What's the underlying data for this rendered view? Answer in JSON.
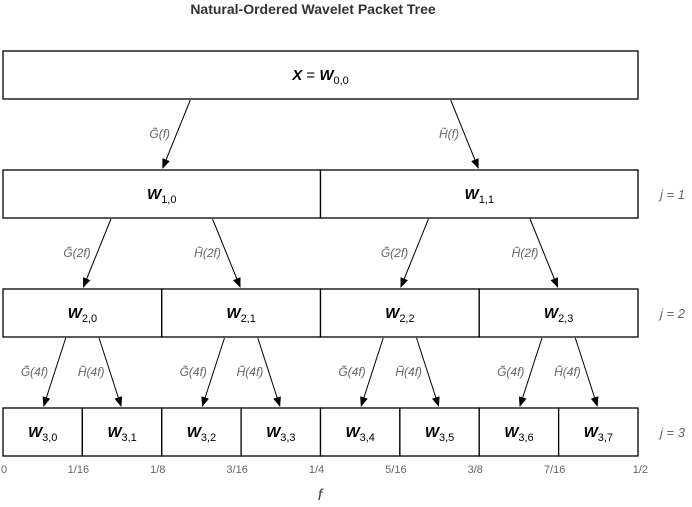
{
  "title": "Natural-Ordered Wavelet Packet Tree",
  "root": {
    "prefix": "X",
    "eq": "=",
    "symbol": "W",
    "sub": "0,0"
  },
  "levels": [
    {
      "j_label": "j = 1",
      "nodes": [
        {
          "symbol": "W",
          "sub": "1,0"
        },
        {
          "symbol": "W",
          "sub": "1,1"
        }
      ]
    },
    {
      "j_label": "j = 2",
      "nodes": [
        {
          "symbol": "W",
          "sub": "2,0"
        },
        {
          "symbol": "W",
          "sub": "2,1"
        },
        {
          "symbol": "W",
          "sub": "2,2"
        },
        {
          "symbol": "W",
          "sub": "2,3"
        }
      ]
    },
    {
      "j_label": "j = 3",
      "nodes": [
        {
          "symbol": "W",
          "sub": "3,0"
        },
        {
          "symbol": "W",
          "sub": "3,1"
        },
        {
          "symbol": "W",
          "sub": "3,2"
        },
        {
          "symbol": "W",
          "sub": "3,3"
        },
        {
          "symbol": "W",
          "sub": "3,4"
        },
        {
          "symbol": "W",
          "sub": "3,5"
        },
        {
          "symbol": "W",
          "sub": "3,6"
        },
        {
          "symbol": "W",
          "sub": "3,7"
        }
      ]
    }
  ],
  "filters": [
    {
      "low": "G̃(f)",
      "high": "H̃(f)"
    },
    {
      "low": "G̃(2f)",
      "high": "H̃(2f)"
    },
    {
      "low": "G̃(4f)",
      "high": "H̃(4f)"
    }
  ],
  "frequency_ticks": [
    "0",
    "1/16",
    "1/8",
    "3/16",
    "1/4",
    "5/16",
    "3/8",
    "7/16",
    "1/2"
  ],
  "axis_label": "f"
}
